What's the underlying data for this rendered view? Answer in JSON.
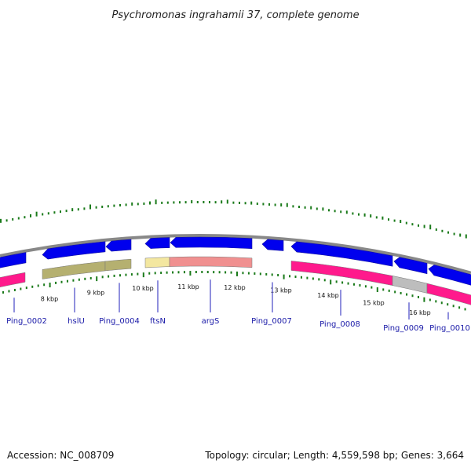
{
  "title": "Psychromonas ingrahamii 37, complete genome",
  "footer": {
    "accession": "Accession: NC_008709",
    "summary": "Topology: circular; Length: 4,559,598 bp; Genes: 3,664"
  },
  "map": {
    "unit": "kbp",
    "tick_labels": [
      "8 kbp",
      "9 kbp",
      "10 kbp",
      "11 kbp",
      "12 kbp",
      "13 kbp",
      "14 kbp",
      "15 kbp",
      "16 kbp"
    ],
    "colors": {
      "cds_forward": "#0000ee",
      "backbone": "#888888",
      "gc_bars": "#1a7a1a",
      "ticks": "#1a7a1a",
      "label_line": "#2222bb",
      "label_text": "#1a1aa8"
    },
    "genes": [
      {
        "label": "Ping_0002"
      },
      {
        "label": "hslU"
      },
      {
        "label": "Ping_0004"
      },
      {
        "label": "ftsN"
      },
      {
        "label": "argS"
      },
      {
        "label": "Ping_0007"
      },
      {
        "label": "Ping_0008"
      },
      {
        "label": "Ping_0009"
      },
      {
        "label": "Ping_0010"
      }
    ],
    "feature_colors": [
      "#ff1a8c",
      "#b5b070",
      "#b5b070",
      "#f3e7a0",
      "#f09090",
      "#ff1a8c",
      "#bdbdbd",
      "#ff1a8c"
    ]
  }
}
